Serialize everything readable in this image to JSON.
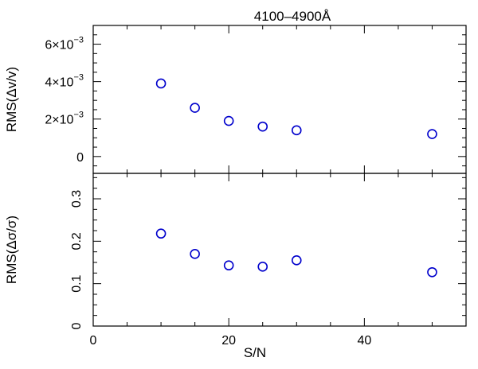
{
  "chart_data": {
    "type": "scatter",
    "title": "4100–4900Å",
    "xlabel": "S/N",
    "xlim": [
      0,
      55
    ],
    "x_ticks": [
      {
        "value": 0,
        "label": "0"
      },
      {
        "value": 20,
        "label": "20"
      },
      {
        "value": 40,
        "label": "40"
      }
    ],
    "x_minor_step": 5,
    "marker": "open-circle",
    "marker_color": "#0000cc",
    "panels": [
      {
        "id": "velocity",
        "ylabel": "RMS(Δv/v)",
        "ylim": [
          -0.0009,
          0.007
        ],
        "y_ticks": [
          {
            "value": 0,
            "mantissa": "0",
            "exponent": ""
          },
          {
            "value": 0.002,
            "mantissa": "2×10",
            "exponent": "−3"
          },
          {
            "value": 0.004,
            "mantissa": "4×10",
            "exponent": "−3"
          },
          {
            "value": 0.006,
            "mantissa": "6×10",
            "exponent": "−3"
          }
        ],
        "y_minor_step": 0.0005,
        "series": [
          {
            "x": [
              10,
              15,
              20,
              25,
              30,
              50
            ],
            "y": [
              0.0039,
              0.0026,
              0.0019,
              0.0016,
              0.0014,
              0.0012
            ]
          }
        ]
      },
      {
        "id": "sigma",
        "ylabel": "RMS(Δσ/σ)",
        "ylim": [
          0,
          0.36
        ],
        "y_ticks": [
          {
            "value": 0,
            "mantissa": "0",
            "exponent": ""
          },
          {
            "value": 0.1,
            "mantissa": "0.1",
            "exponent": ""
          },
          {
            "value": 0.2,
            "mantissa": "0.2",
            "exponent": ""
          },
          {
            "value": 0.3,
            "mantissa": "0.3",
            "exponent": ""
          }
        ],
        "y_minor_step": 0.025,
        "series": [
          {
            "x": [
              10,
              15,
              20,
              25,
              30,
              50
            ],
            "y": [
              0.218,
              0.17,
              0.143,
              0.14,
              0.155,
              0.127
            ]
          }
        ]
      }
    ]
  }
}
